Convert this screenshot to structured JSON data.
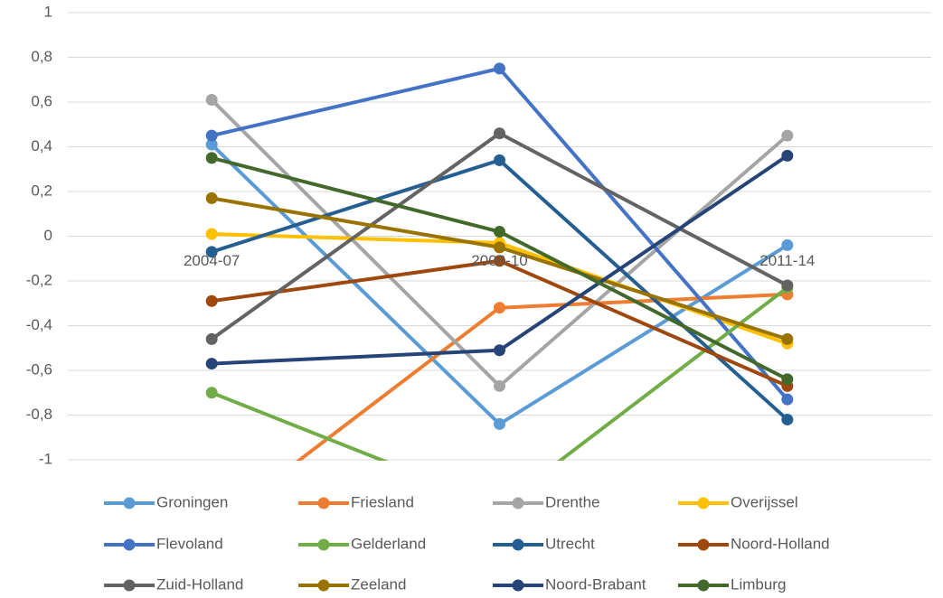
{
  "chart_data": {
    "type": "line",
    "categories": [
      "2004-07",
      "2008-10",
      "2011-14"
    ],
    "series": [
      {
        "name": "Groningen",
        "color": "#5b9bd5",
        "values": [
          0.41,
          -0.84,
          -0.04
        ]
      },
      {
        "name": "Friesland",
        "color": "#ed7d31",
        "values": [
          -1.3,
          -0.32,
          -0.26
        ]
      },
      {
        "name": "Drenthe",
        "color": "#a5a5a5",
        "values": [
          0.61,
          -0.67,
          0.45
        ]
      },
      {
        "name": "Overijssel",
        "color": "#ffc000",
        "values": [
          0.01,
          -0.03,
          -0.48
        ]
      },
      {
        "name": "Flevoland",
        "color": "#4472c4",
        "values": [
          0.45,
          0.75,
          -0.73
        ]
      },
      {
        "name": "Gelderland",
        "color": "#70ad47",
        "values": [
          -0.7,
          -1.21,
          -0.23
        ]
      },
      {
        "name": "Utrecht",
        "color": "#255e91",
        "values": [
          -0.07,
          0.34,
          -0.82
        ]
      },
      {
        "name": "Noord-Holland",
        "color": "#9e480e",
        "values": [
          -0.29,
          -0.11,
          -0.67
        ]
      },
      {
        "name": "Zuid-Holland",
        "color": "#636363",
        "values": [
          -0.46,
          0.46,
          -0.22
        ]
      },
      {
        "name": "Zeeland",
        "color": "#997300",
        "values": [
          0.17,
          -0.05,
          -0.46
        ]
      },
      {
        "name": "Noord-Brabant",
        "color": "#264478",
        "values": [
          -0.57,
          -0.51,
          0.36
        ]
      },
      {
        "name": "Limburg",
        "color": "#43682b",
        "values": [
          0.35,
          0.02,
          -0.64
        ]
      }
    ],
    "ylim": [
      -1,
      1
    ],
    "yticks": [
      -1,
      {
        "value": -0.8,
        "label": "-0,8"
      },
      {
        "value": -0.6,
        "label": "-0,6"
      },
      {
        "value": -0.4,
        "label": "-0,4"
      },
      {
        "value": -0.2,
        "label": "-0,2"
      },
      0,
      {
        "value": 0.2,
        "label": "0,2"
      },
      {
        "value": 0.4,
        "label": "0,4"
      },
      {
        "value": 0.6,
        "label": "0,6"
      },
      {
        "value": 0.8,
        "label": "0,8"
      },
      1
    ],
    "grid": true,
    "legend": "bottom"
  }
}
